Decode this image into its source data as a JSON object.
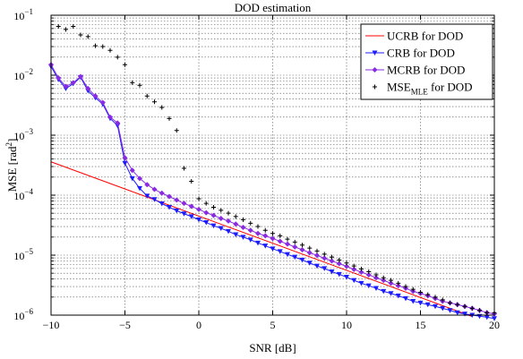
{
  "chart_data": {
    "type": "line",
    "title": "DOD estimation",
    "xlabel": "SNR [dB]",
    "ylabel": "MSE [rad",
    "ylabel_sup": "2",
    "ylabel_close": "]",
    "xlim": [
      -10,
      20
    ],
    "ylim": [
      1e-06,
      0.1
    ],
    "yscale": "log",
    "grid": true,
    "legend_position": "top-right",
    "x_ticks": [
      "−10",
      "−5",
      "0",
      "5",
      "10",
      "15",
      "20"
    ],
    "y_ticks": [
      {
        "base": "10",
        "exp": "−6"
      },
      {
        "base": "10",
        "exp": "−5"
      },
      {
        "base": "10",
        "exp": "−4"
      },
      {
        "base": "10",
        "exp": "−3"
      },
      {
        "base": "10",
        "exp": "−2"
      },
      {
        "base": "10",
        "exp": "−1"
      }
    ],
    "series": [
      {
        "name": "UCRB for DOD",
        "color": "#ff0000",
        "marker": "none",
        "x": [
          -10,
          18.5
        ],
        "y": [
          0.00036,
          9.5e-07
        ]
      },
      {
        "name": "CRB for DOD",
        "color": "#1c1cff",
        "marker": "triangle-down",
        "x": [
          -10,
          -9.5,
          -9,
          -8.5,
          -8,
          -7.5,
          -7,
          -6.5,
          -6,
          -5.5,
          -5,
          -4.5,
          -4,
          -3.5,
          -3,
          -2.5,
          -2,
          -1.5,
          -1,
          -0.5,
          0,
          0.5,
          1,
          1.5,
          2,
          2.5,
          3,
          3.5,
          4,
          4.5,
          5,
          5.5,
          6,
          6.5,
          7,
          7.5,
          8,
          8.5,
          9,
          9.5,
          10,
          10.5,
          11,
          11.5,
          12,
          12.5,
          13,
          13.5,
          14,
          14.5,
          15,
          15.5,
          16,
          16.5,
          17,
          17.5,
          18,
          18.5,
          19,
          19.5,
          20
        ],
        "y": [
          0.014,
          0.0085,
          0.006,
          0.0072,
          0.0092,
          0.0055,
          0.0042,
          0.0033,
          0.0019,
          0.00145,
          0.00034,
          0.00019,
          0.00013,
          9.7e-05,
          8.5e-05,
          7.2e-05,
          6.3e-05,
          5.5e-05,
          4.9e-05,
          4.4e-05,
          3.9e-05,
          3.5e-05,
          3.1e-05,
          2.8e-05,
          2.5e-05,
          2.2e-05,
          2e-05,
          1.8e-05,
          1.6e-05,
          1.43e-05,
          1.28e-05,
          1.15e-05,
          1.03e-05,
          9.3e-06,
          8.3e-06,
          7.4e-06,
          6.6e-06,
          6e-06,
          5.3e-06,
          4.8e-06,
          4.3e-06,
          3.8e-06,
          3.4e-06,
          3.1e-06,
          2.8e-06,
          2.5e-06,
          2.3e-06,
          2.1e-06,
          1.9e-06,
          1.7e-06,
          1.6e-06,
          1.5e-06,
          1.4e-06,
          1.3e-06,
          1.2e-06,
          1.1e-06,
          1.05e-06,
          1e-06,
          9.6e-07,
          9.2e-07,
          8.8e-07
        ]
      },
      {
        "name": "MCRB for DOD",
        "color": "#8a2be2",
        "marker": "diamond",
        "x": [
          -10,
          -9.5,
          -9,
          -8.5,
          -8,
          -7.5,
          -7,
          -6.5,
          -6,
          -5.5,
          -5,
          -4.5,
          -4,
          -3.5,
          -3,
          -2.5,
          -2,
          -1.5,
          -1,
          -0.5,
          0,
          0.5,
          1,
          1.5,
          2,
          2.5,
          3,
          3.5,
          4,
          4.5,
          5,
          5.5,
          6,
          6.5,
          7,
          7.5,
          8,
          8.5,
          9,
          9.5,
          10,
          10.5,
          11,
          11.5,
          12,
          12.5,
          13,
          13.5,
          14,
          14.5,
          15,
          15.5,
          16,
          16.5,
          17,
          17.5,
          18,
          18.5,
          19,
          19.5,
          20
        ],
        "y": [
          0.015,
          0.009,
          0.0065,
          0.0075,
          0.0095,
          0.006,
          0.0045,
          0.0035,
          0.002,
          0.0016,
          0.00042,
          0.00026,
          0.00019,
          0.00015,
          0.000125,
          0.000108,
          9.5e-05,
          8.3e-05,
          7.3e-05,
          6.5e-05,
          5.8e-05,
          5.1e-05,
          4.6e-05,
          4.1e-05,
          3.7e-05,
          3.3e-05,
          2.9e-05,
          2.6e-05,
          2.3e-05,
          2.1e-05,
          1.9e-05,
          1.7e-05,
          1.53e-05,
          1.37e-05,
          1.23e-05,
          1.1e-05,
          9.9e-06,
          8.9e-06,
          8e-06,
          7.2e-06,
          6.5e-06,
          5.8e-06,
          5.2e-06,
          4.7e-06,
          4.2e-06,
          3.8e-06,
          3.4e-06,
          3.1e-06,
          2.8e-06,
          2.5e-06,
          2.3e-06,
          2.1e-06,
          1.9e-06,
          1.7e-06,
          1.6e-06,
          1.5e-06,
          1.4e-06,
          1.3e-06,
          1.2e-06,
          1.1e-06,
          1.05e-06
        ]
      },
      {
        "name": "MSE",
        "name_sub": "MLE",
        "name_suffix": " for DOD",
        "color": "#000000",
        "marker": "plus",
        "x": [
          -9.5,
          -9,
          -8.5,
          -8,
          -7.5,
          -7,
          -6.5,
          -6,
          -5.5,
          -5,
          -4.5,
          -4,
          -3.5,
          -3,
          -2.5,
          -2,
          -1.5,
          -1,
          -0.5,
          0,
          0.5,
          1,
          1.5,
          2,
          2.5,
          3,
          3.5,
          4,
          4.5,
          5,
          5.5,
          6,
          6.5,
          7,
          7.5,
          8,
          8.5,
          9,
          9.5,
          10,
          10.5,
          11,
          11.5,
          12,
          12.5,
          13,
          13.5,
          14,
          14.5,
          15,
          15.5,
          16,
          16.5,
          17,
          17.5,
          18,
          18.5,
          19,
          19.5,
          20
        ],
        "y": [
          0.065,
          0.058,
          0.065,
          0.047,
          0.044,
          0.031,
          0.03,
          0.026,
          0.02,
          0.015,
          0.0075,
          0.0068,
          0.0045,
          0.0036,
          0.0029,
          0.0019,
          0.0012,
          0.00028,
          0.00017,
          8.7e-05,
          7.3e-05,
          6.3e-05,
          5.6e-05,
          5e-05,
          4.4e-05,
          3.9e-05,
          3.4e-05,
          3e-05,
          2.6e-05,
          2.3e-05,
          2.1e-05,
          1.85e-05,
          1.65e-05,
          1.47e-05,
          1.31e-05,
          1.17e-05,
          1.04e-05,
          9.3e-06,
          8.3e-06,
          7.4e-06,
          6.6e-06,
          5.9e-06,
          5.3e-06,
          4.7e-06,
          4.2e-06,
          3.8e-06,
          3.4e-06,
          3e-06,
          2.7e-06,
          2.4e-06,
          2.2e-06,
          2e-06,
          1.8e-06,
          1.6e-06,
          1.5e-06,
          1.4e-06,
          1.3e-06,
          1.2e-06,
          1.1e-06,
          1.1e-06
        ]
      }
    ]
  }
}
